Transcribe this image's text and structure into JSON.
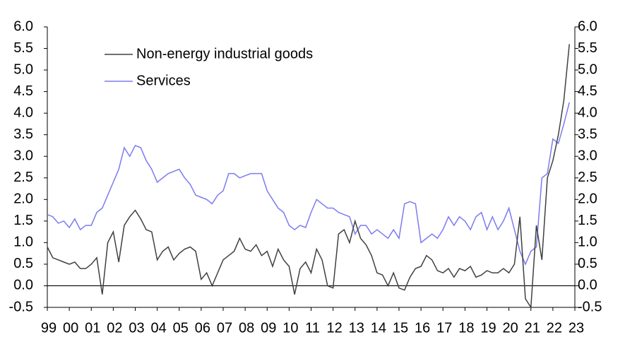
{
  "chart_data": {
    "type": "line",
    "x": [
      1999,
      1999.25,
      1999.5,
      1999.75,
      2000,
      2000.25,
      2000.5,
      2000.75,
      2001,
      2001.25,
      2001.5,
      2001.75,
      2002,
      2002.25,
      2002.5,
      2002.75,
      2003,
      2003.25,
      2003.5,
      2003.75,
      2004,
      2004.25,
      2004.5,
      2004.75,
      2005,
      2005.25,
      2005.5,
      2005.75,
      2006,
      2006.25,
      2006.5,
      2006.75,
      2007,
      2007.25,
      2007.5,
      2007.75,
      2008,
      2008.25,
      2008.5,
      2008.75,
      2009,
      2009.25,
      2009.5,
      2009.75,
      2010,
      2010.25,
      2010.5,
      2010.75,
      2011,
      2011.25,
      2011.5,
      2011.75,
      2012,
      2012.25,
      2012.5,
      2012.75,
      2013,
      2013.25,
      2013.5,
      2013.75,
      2014,
      2014.25,
      2014.5,
      2014.75,
      2015,
      2015.25,
      2015.5,
      2015.75,
      2016,
      2016.25,
      2016.5,
      2016.75,
      2017,
      2017.25,
      2017.5,
      2017.75,
      2018,
      2018.25,
      2018.5,
      2018.75,
      2019,
      2019.25,
      2019.5,
      2019.75,
      2020,
      2020.25,
      2020.5,
      2020.75,
      2021,
      2021.25,
      2021.5,
      2021.75,
      2022,
      2022.25,
      2022.5,
      2022.75
    ],
    "series": [
      {
        "name": "Non-energy industrial goods",
        "color": "#404040",
        "values": [
          0.9,
          0.65,
          0.6,
          0.55,
          0.5,
          0.55,
          0.4,
          0.4,
          0.5,
          0.65,
          -0.2,
          1.0,
          1.25,
          0.55,
          1.4,
          1.6,
          1.75,
          1.55,
          1.3,
          1.25,
          0.6,
          0.8,
          0.9,
          0.6,
          0.75,
          0.85,
          0.9,
          0.8,
          0.15,
          0.3,
          0.0,
          0.3,
          0.6,
          0.7,
          0.8,
          1.1,
          0.85,
          0.8,
          0.95,
          0.7,
          0.8,
          0.45,
          0.85,
          0.6,
          0.45,
          -0.2,
          0.4,
          0.55,
          0.3,
          0.85,
          0.6,
          0.0,
          -0.05,
          1.2,
          1.3,
          1.0,
          1.5,
          1.1,
          0.95,
          0.7,
          0.3,
          0.25,
          0.0,
          0.3,
          -0.05,
          -0.1,
          0.2,
          0.4,
          0.45,
          0.7,
          0.6,
          0.35,
          0.3,
          0.4,
          0.2,
          0.4,
          0.35,
          0.45,
          0.2,
          0.25,
          0.35,
          0.3,
          0.3,
          0.4,
          0.3,
          0.5,
          1.6,
          -0.3,
          -0.5,
          1.4,
          0.6,
          2.5,
          2.9,
          3.5,
          4.3,
          5.6
        ]
      },
      {
        "name": "Services",
        "color": "#7b7bf0",
        "values": [
          1.65,
          1.6,
          1.45,
          1.5,
          1.35,
          1.55,
          1.3,
          1.4,
          1.4,
          1.7,
          1.8,
          2.1,
          2.4,
          2.7,
          3.2,
          3.0,
          3.25,
          3.2,
          2.9,
          2.7,
          2.4,
          2.5,
          2.6,
          2.65,
          2.7,
          2.5,
          2.35,
          2.1,
          2.05,
          2.0,
          1.9,
          2.1,
          2.2,
          2.6,
          2.6,
          2.5,
          2.55,
          2.6,
          2.6,
          2.6,
          2.2,
          2.0,
          1.8,
          1.7,
          1.4,
          1.3,
          1.4,
          1.35,
          1.7,
          2.0,
          1.9,
          1.8,
          1.8,
          1.7,
          1.65,
          1.6,
          1.2,
          1.4,
          1.4,
          1.2,
          1.3,
          1.2,
          1.1,
          1.3,
          1.1,
          1.9,
          1.95,
          1.9,
          1.0,
          1.1,
          1.2,
          1.1,
          1.3,
          1.6,
          1.4,
          1.6,
          1.5,
          1.3,
          1.6,
          1.7,
          1.3,
          1.6,
          1.3,
          1.5,
          1.8,
          1.3,
          0.8,
          0.5,
          0.8,
          0.9,
          2.5,
          2.6,
          3.4,
          3.3,
          3.75,
          4.25
        ]
      }
    ],
    "xlim": [
      1999,
      2023
    ],
    "xticks": [
      {
        "value": 1999,
        "label": "99"
      },
      {
        "value": 2000,
        "label": "00"
      },
      {
        "value": 2001,
        "label": "01"
      },
      {
        "value": 2002,
        "label": "02"
      },
      {
        "value": 2003,
        "label": "03"
      },
      {
        "value": 2004,
        "label": "04"
      },
      {
        "value": 2005,
        "label": "05"
      },
      {
        "value": 2006,
        "label": "06"
      },
      {
        "value": 2007,
        "label": "07"
      },
      {
        "value": 2008,
        "label": "08"
      },
      {
        "value": 2009,
        "label": "09"
      },
      {
        "value": 2010,
        "label": "10"
      },
      {
        "value": 2011,
        "label": "11"
      },
      {
        "value": 2012,
        "label": "12"
      },
      {
        "value": 2013,
        "label": "13"
      },
      {
        "value": 2014,
        "label": "14"
      },
      {
        "value": 2015,
        "label": "15"
      },
      {
        "value": 2016,
        "label": "16"
      },
      {
        "value": 2017,
        "label": "17"
      },
      {
        "value": 2018,
        "label": "18"
      },
      {
        "value": 2019,
        "label": "19"
      },
      {
        "value": 2020,
        "label": "20"
      },
      {
        "value": 2021,
        "label": "21"
      },
      {
        "value": 2022,
        "label": "22"
      },
      {
        "value": 2023,
        "label": "23"
      }
    ],
    "ylim": [
      -0.5,
      6
    ],
    "yticks": [
      -0.5,
      {
        "value": 0,
        "label": "0.0"
      },
      0.5,
      {
        "value": 1,
        "label": "1.0"
      },
      1.5,
      {
        "value": 2,
        "label": "2.0"
      },
      2.5,
      {
        "value": 3,
        "label": "3.0"
      },
      3.5,
      {
        "value": 4,
        "label": "4.0"
      },
      4.5,
      {
        "value": 5,
        "label": "5.0"
      },
      5.5,
      {
        "value": 6,
        "label": "6.0"
      }
    ],
    "y2lim": [
      -0.5,
      6
    ],
    "y2ticks": [
      -0.5,
      {
        "value": 0,
        "label": "0.0"
      },
      0.5,
      {
        "value": 1,
        "label": "1.0"
      },
      1.5,
      {
        "value": 2,
        "label": "2.0"
      },
      2.5,
      {
        "value": 3,
        "label": "3.0"
      },
      3.5,
      {
        "value": 4,
        "label": "4.0"
      },
      4.5,
      {
        "value": 5,
        "label": "5.0"
      },
      5.5,
      {
        "value": 6,
        "label": "6.0"
      }
    ],
    "legend": "upper-left"
  }
}
